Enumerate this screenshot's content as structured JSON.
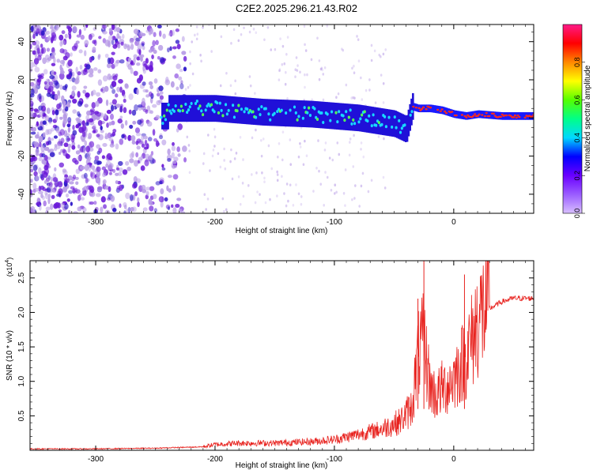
{
  "title": "C2E2.2025.296.21.43.R02",
  "colors": {
    "snr_line": "#e8231f",
    "spec_low": "#b79be6",
    "spec_mid": "#6a18d8",
    "spec_dark": "#2a14c8"
  },
  "chart_data": [
    {
      "type": "heatmap",
      "title": "C2E2.2025.296.21.43.R02",
      "xlabel": "Height of straight line (km)",
      "ylabel": "Frequency (Hz)",
      "xlim": [
        -355,
        67
      ],
      "ylim": [
        -50,
        49
      ],
      "xticks": [
        -300,
        -200,
        -100,
        0
      ],
      "yticks": [
        -40,
        -20,
        0,
        20,
        40
      ],
      "xtick_labels": [
        "-300",
        "-200",
        "-100",
        "0"
      ],
      "ytick_labels": [
        "-40",
        "-20",
        "0",
        "20",
        "40"
      ],
      "colorbar": {
        "label": "Normalized spectral amplitude",
        "range": [
          0,
          1
        ],
        "ticks": [
          0.0,
          0.2,
          0.4,
          0.6,
          0.8
        ],
        "tick_labels": [
          "0.0",
          "0.2",
          "0.4",
          "0.6",
          "0.8"
        ],
        "stops": [
          "#d8bfff",
          "#9a5cff",
          "#6a00ff",
          "#0000ff",
          "#00d8ff",
          "#00ff88",
          "#55ff00",
          "#ffff00",
          "#ff8800",
          "#ff0000",
          "#ff1a88"
        ]
      },
      "ridge": {
        "x": [
          -240,
          -200,
          -160,
          -120,
          -80,
          -50,
          -40,
          -35,
          -30,
          -20,
          -10,
          -5,
          0,
          10,
          20,
          40,
          67
        ],
        "y": [
          5,
          5,
          3,
          2,
          0,
          -3,
          -6,
          6,
          5,
          5,
          4,
          3,
          2,
          1,
          2,
          1,
          1
        ]
      },
      "grid": false
    },
    {
      "type": "line",
      "xlabel": "Height of straight line (km)",
      "ylabel": "SNR (10 * v/v)",
      "y_multiplier": "(x10^4)",
      "xlim": [
        -355,
        67
      ],
      "ylim": [
        0,
        2.75
      ],
      "xticks": [
        -300,
        -200,
        -100,
        0
      ],
      "yticks": [
        0.5,
        1.0,
        1.5,
        2.0,
        2.5
      ],
      "xtick_labels": [
        "-300",
        "-200",
        "-100",
        "0"
      ],
      "ytick_labels": [
        "0.5",
        "1.0",
        "1.5",
        "2.0",
        "2.5"
      ],
      "series": [
        {
          "x": [
            -355,
            -300,
            -250,
            -210,
            -200,
            -180,
            -150,
            -120,
            -100,
            -80,
            -60,
            -45,
            -35,
            -30,
            -25,
            -20,
            -15,
            -10,
            -5,
            0,
            5,
            10,
            15,
            20,
            30,
            40,
            50,
            67
          ],
          "y": [
            0.02,
            0.02,
            0.03,
            0.05,
            0.08,
            0.1,
            0.1,
            0.12,
            0.15,
            0.22,
            0.3,
            0.4,
            0.6,
            1.3,
            1.5,
            0.9,
            0.75,
            0.85,
            0.9,
            1.0,
            1.15,
            1.3,
            1.5,
            1.8,
            2.05,
            2.15,
            2.2,
            2.2
          ]
        }
      ],
      "spikes": {
        "x": [
          -30,
          -25,
          9
        ],
        "y": [
          2.2,
          2.75,
          2.55
        ]
      },
      "grid": false
    }
  ]
}
